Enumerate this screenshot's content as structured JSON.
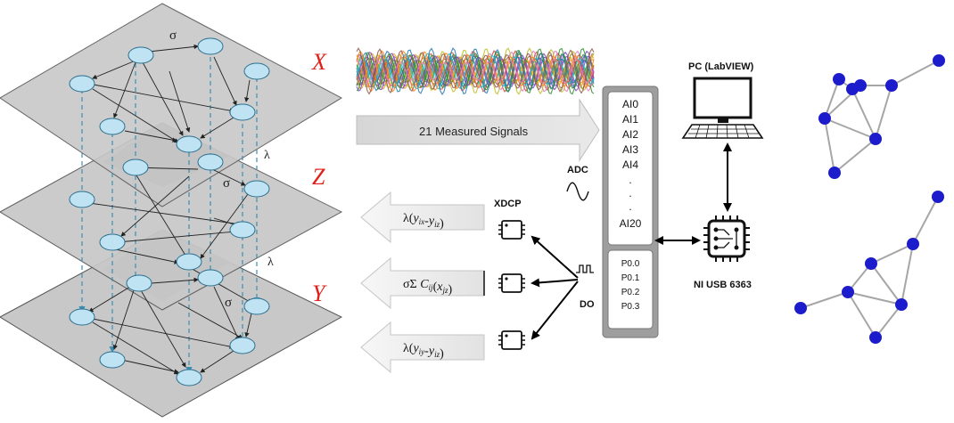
{
  "layers": {
    "x_label": "X",
    "z_label": "Z",
    "y_label": "Y",
    "sigma": "σ",
    "lambda": "λ"
  },
  "signals": {
    "arrow_label": "21 Measured Signals"
  },
  "daq": {
    "adc_label": "ADC",
    "do_label": "DO",
    "device_name": "NI USB 6363",
    "analog_inputs": [
      "AI0",
      "AI1",
      "AI2",
      "AI3",
      "AI4",
      ".",
      ".",
      ".",
      "AI20"
    ],
    "digital_outputs": [
      "P0.0",
      "P0.1",
      "P0.2",
      "P0.3"
    ]
  },
  "pc": {
    "label": "PC (LabVIEW)"
  },
  "coupling": {
    "chip_label": "XDCP",
    "outputs": [
      {
        "prefix": "λ(",
        "expr": "y",
        "sub1": "ix",
        "sep": "-",
        "expr2": "y",
        "sub2": "iz",
        "suffix": ")"
      },
      {
        "prefix": "σΣ ",
        "expr": "C",
        "sub1": "ij",
        "sep": "(",
        "expr2": "x",
        "sub2": "jz",
        "suffix": ")"
      },
      {
        "prefix": "λ(",
        "expr": "y",
        "sub1": "iy",
        "sep": "-",
        "expr2": "y",
        "sub2": "iz",
        "suffix": ")"
      }
    ]
  },
  "colors": {
    "node_fill": "#bfe3f2",
    "layer_fill": "#c8c8c8",
    "layer_dark": "#9a9a9a",
    "layer_label": "#e0201a",
    "dashed": "#3a8fb0",
    "graph_node": "#1c1ccc",
    "graph_edge": "#a6a6a6"
  }
}
